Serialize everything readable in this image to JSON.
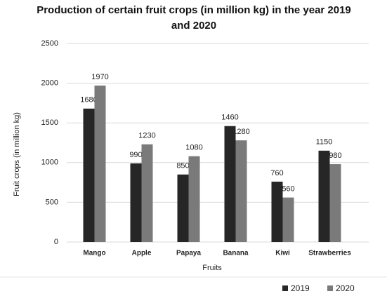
{
  "chart_data": {
    "type": "bar",
    "title": "Production of certain fruit crops (in million kg) in the year 2019 and 2020",
    "x_label": "Fruits",
    "y_label": "Fruit crops (in million kg)",
    "categories": [
      "Mango",
      "Apple",
      "Papaya",
      "Banana",
      "Kiwi",
      "Strawberries"
    ],
    "series": [
      {
        "name": "2019",
        "color": "#262626",
        "values": [
          1680,
          990,
          850,
          1460,
          760,
          1150
        ]
      },
      {
        "name": "2020",
        "color": "#7a7a7a",
        "values": [
          1970,
          1230,
          1080,
          1280,
          560,
          980
        ]
      }
    ],
    "ylim": [
      0,
      2500
    ],
    "yticks": [
      0,
      500,
      1000,
      1500,
      2000,
      2500
    ],
    "grid": true,
    "legend": "bottom-right"
  }
}
